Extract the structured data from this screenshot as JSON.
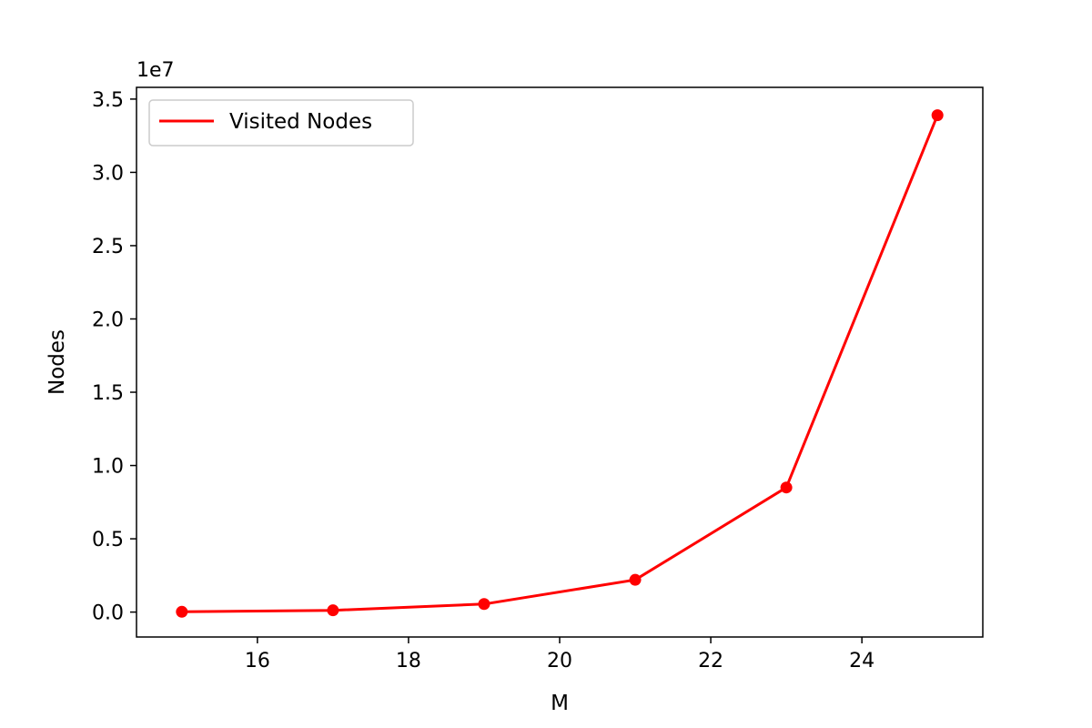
{
  "chart_data": {
    "type": "line",
    "title": "",
    "xlabel": "M",
    "ylabel": "Nodes",
    "y_offset_label": "1e7",
    "xlim": [
      14.4,
      25.6
    ],
    "ylim": [
      -1700000,
      35800000
    ],
    "x_ticks": [
      16,
      18,
      20,
      22,
      24
    ],
    "x_tick_labels": [
      "16",
      "18",
      "20",
      "22",
      "24"
    ],
    "y_ticks": [
      0,
      5000000,
      10000000,
      15000000,
      20000000,
      25000000,
      30000000,
      35000000
    ],
    "y_tick_labels": [
      "0.0",
      "0.5",
      "1.0",
      "1.5",
      "2.0",
      "2.5",
      "3.0",
      "3.5"
    ],
    "grid": false,
    "legend_position": "upper-left",
    "series": [
      {
        "name": "Visited Nodes",
        "color": "#ff0000",
        "marker": "circle",
        "x": [
          15,
          17,
          19,
          21,
          23,
          25
        ],
        "y": [
          20000,
          120000,
          550000,
          2200000,
          8500000,
          33900000
        ]
      }
    ]
  }
}
